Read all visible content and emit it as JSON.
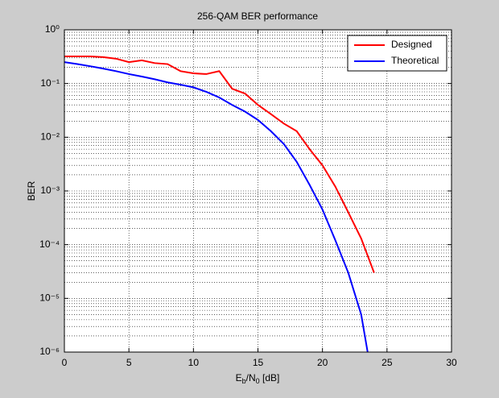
{
  "chart_data": {
    "type": "line",
    "title": "256-QAM BER performance",
    "x_label": [
      "E",
      "b",
      "/N",
      "0",
      " [dB]"
    ],
    "y_label": "BER",
    "xlim": [
      0,
      30
    ],
    "xticks": [
      0,
      5,
      10,
      15,
      20,
      25,
      30
    ],
    "ylim": [
      1e-06,
      1
    ],
    "log_y": true,
    "yticks": [
      {
        "value": 1e-06,
        "label": "10⁻⁶"
      },
      {
        "value": 1e-05,
        "label": "10⁻⁵"
      },
      {
        "value": 0.0001,
        "label": "10⁻⁴"
      },
      {
        "value": 0.001,
        "label": "10⁻³"
      },
      {
        "value": 0.01,
        "label": "10⁻²"
      },
      {
        "value": 0.1,
        "label": "10⁻¹"
      },
      {
        "value": 1,
        "label": "10⁰"
      }
    ],
    "grid": true,
    "minor_grid": true,
    "legend": "top-right",
    "series": [
      {
        "name": "Designed",
        "color": "#ff0000",
        "x": [
          0,
          1,
          2,
          3,
          4,
          5,
          6,
          7,
          8,
          9,
          10,
          11,
          12,
          13,
          14,
          15,
          16,
          17,
          18,
          19,
          20,
          21,
          22,
          23,
          24
        ],
        "values": [
          0.32,
          0.32,
          0.32,
          0.31,
          0.29,
          0.25,
          0.27,
          0.24,
          0.23,
          0.17,
          0.155,
          0.15,
          0.17,
          0.08,
          0.065,
          0.04,
          0.027,
          0.018,
          0.013,
          0.006,
          0.003,
          0.0012,
          0.0004,
          0.00013,
          3e-05
        ]
      },
      {
        "name": "Theoretical",
        "color": "#0000ff",
        "x": [
          0,
          1,
          2,
          3,
          4,
          5,
          6,
          7,
          8,
          9,
          10,
          11,
          12,
          13,
          14,
          15,
          16,
          17,
          18,
          19,
          20,
          21,
          22,
          23,
          23.5
        ],
        "values": [
          0.25,
          0.23,
          0.21,
          0.19,
          0.17,
          0.15,
          0.135,
          0.12,
          0.105,
          0.095,
          0.085,
          0.07,
          0.055,
          0.04,
          0.03,
          0.021,
          0.013,
          0.0075,
          0.0035,
          0.0013,
          0.00045,
          0.00012,
          3e-05,
          5e-06,
          1e-06
        ]
      }
    ]
  }
}
